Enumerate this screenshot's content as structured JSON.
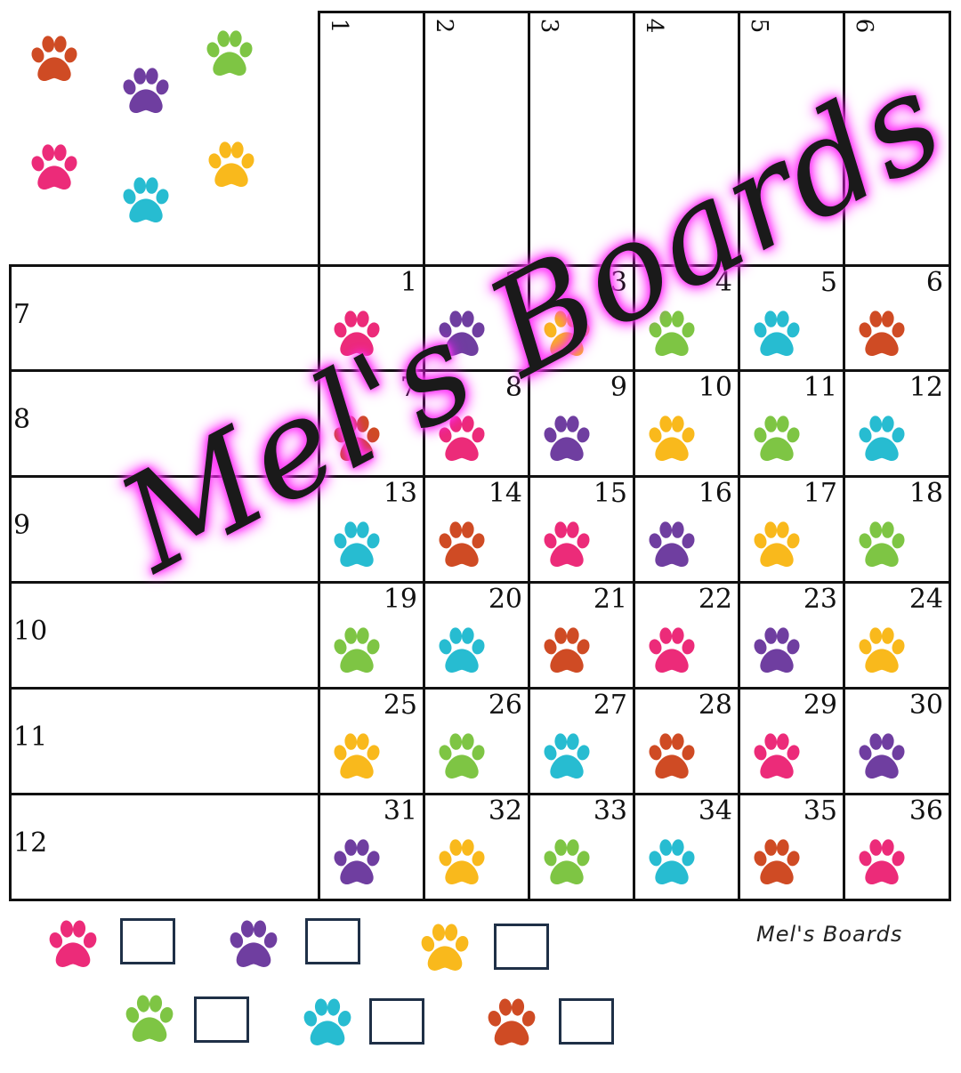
{
  "colors": {
    "pink": "#ec2b79",
    "purple": "#6f3ea0",
    "yellow": "#f9b91c",
    "green": "#7ec544",
    "teal": "#27bcd1",
    "orange": "#cf4b24",
    "line": "#111111",
    "glow": "#ff3ff6"
  },
  "legend_paws": [
    "orange",
    "purple",
    "green",
    "pink",
    "teal",
    "yellow"
  ],
  "column_numbers": [
    "1",
    "2",
    "3",
    "4",
    "5",
    "6"
  ],
  "row_numbers": [
    "7",
    "8",
    "9",
    "10",
    "11",
    "12"
  ],
  "cells": [
    {
      "n": "1",
      "paw": "pink"
    },
    {
      "n": "2",
      "paw": "purple"
    },
    {
      "n": "3",
      "paw": "yellow"
    },
    {
      "n": "4",
      "paw": "green"
    },
    {
      "n": "5",
      "paw": "teal"
    },
    {
      "n": "6",
      "paw": "orange"
    },
    {
      "n": "7",
      "paw": "orange"
    },
    {
      "n": "8",
      "paw": "pink"
    },
    {
      "n": "9",
      "paw": "purple"
    },
    {
      "n": "10",
      "paw": "yellow"
    },
    {
      "n": "11",
      "paw": "green"
    },
    {
      "n": "12",
      "paw": "teal"
    },
    {
      "n": "13",
      "paw": "teal"
    },
    {
      "n": "14",
      "paw": "orange"
    },
    {
      "n": "15",
      "paw": "pink"
    },
    {
      "n": "16",
      "paw": "purple"
    },
    {
      "n": "17",
      "paw": "yellow"
    },
    {
      "n": "18",
      "paw": "green"
    },
    {
      "n": "19",
      "paw": "green"
    },
    {
      "n": "20",
      "paw": "teal"
    },
    {
      "n": "21",
      "paw": "orange"
    },
    {
      "n": "22",
      "paw": "pink"
    },
    {
      "n": "23",
      "paw": "purple"
    },
    {
      "n": "24",
      "paw": "yellow"
    },
    {
      "n": "25",
      "paw": "yellow"
    },
    {
      "n": "26",
      "paw": "green"
    },
    {
      "n": "27",
      "paw": "teal"
    },
    {
      "n": "28",
      "paw": "orange"
    },
    {
      "n": "29",
      "paw": "pink"
    },
    {
      "n": "30",
      "paw": "purple"
    },
    {
      "n": "31",
      "paw": "purple"
    },
    {
      "n": "32",
      "paw": "yellow"
    },
    {
      "n": "33",
      "paw": "green"
    },
    {
      "n": "34",
      "paw": "teal"
    },
    {
      "n": "35",
      "paw": "orange"
    },
    {
      "n": "36",
      "paw": "pink"
    }
  ],
  "tally_paws": [
    "pink",
    "purple",
    "yellow",
    "green",
    "teal",
    "orange"
  ],
  "brand": "Mel's Boards",
  "watermark": "Mel's Boards"
}
